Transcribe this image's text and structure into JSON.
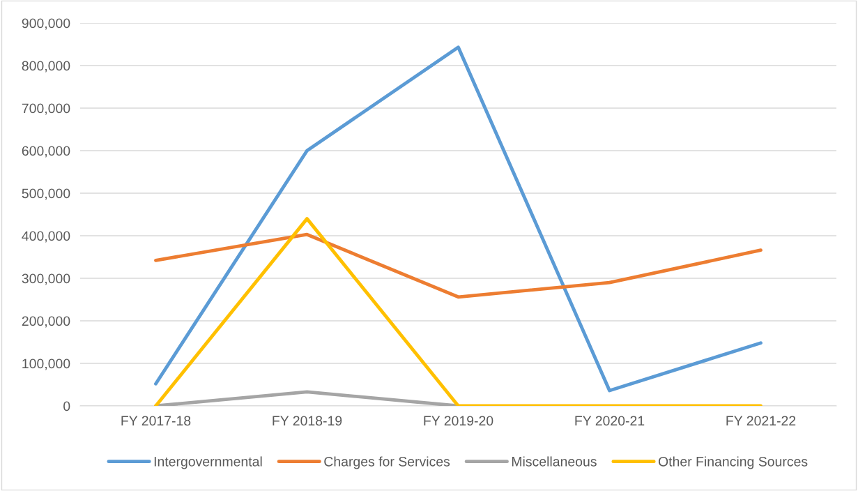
{
  "chart_data": {
    "type": "line",
    "categories": [
      "FY 2017-18",
      "FY 2018-19",
      "FY 2019-20",
      "FY 2020-21",
      "FY 2021-22"
    ],
    "series": [
      {
        "name": "Intergovernmental",
        "color": "#5b9bd5",
        "values": [
          52000,
          600000,
          843000,
          36000,
          148000
        ]
      },
      {
        "name": "Charges for Services",
        "color": "#ed7d31",
        "values": [
          342000,
          403000,
          256000,
          290000,
          366000
        ]
      },
      {
        "name": "Miscellaneous",
        "color": "#a5a5a5",
        "values": [
          0,
          33000,
          0,
          null,
          null
        ]
      },
      {
        "name": "Other Financing Sources",
        "color": "#ffc000",
        "values": [
          0,
          440000,
          0,
          0,
          0
        ]
      }
    ],
    "ylim": [
      0,
      900000
    ],
    "yticks": [
      {
        "value": 0,
        "label": "0"
      },
      {
        "value": 100000,
        "label": "100,000"
      },
      {
        "value": 200000,
        "label": "200,000"
      },
      {
        "value": 300000,
        "label": "300,000"
      },
      {
        "value": 400000,
        "label": "400,000"
      },
      {
        "value": 500000,
        "label": "500,000"
      },
      {
        "value": 600000,
        "label": "600,000"
      },
      {
        "value": 700000,
        "label": "700,000"
      },
      {
        "value": 800000,
        "label": "800,000"
      },
      {
        "value": 900000,
        "label": "900,000"
      }
    ],
    "grid": "y",
    "legend": "bottom",
    "marker": "none",
    "line_style": "solid"
  }
}
